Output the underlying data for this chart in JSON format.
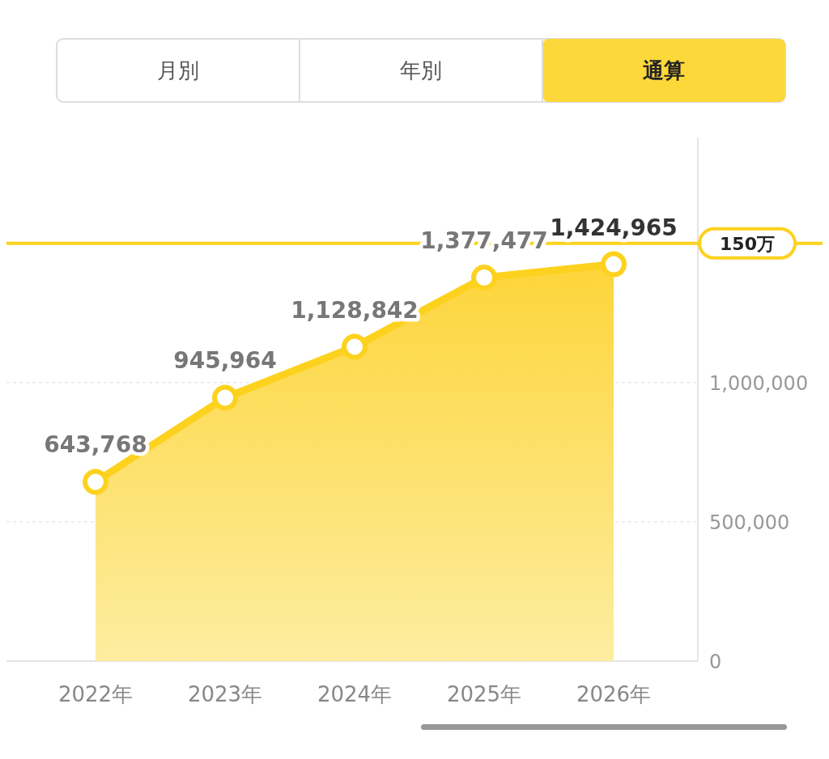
{
  "chart_data": {
    "type": "area",
    "categories": [
      "2022年",
      "2023年",
      "2024年",
      "2025年",
      "2026年"
    ],
    "values": [
      643768,
      945964,
      1128842,
      1377477,
      1424965
    ],
    "color": "#fdd21f",
    "ylim": [
      0,
      1880000
    ],
    "yticks": [
      0,
      {
        "value": 500000,
        "label": "500,000"
      },
      {
        "value": 1000000,
        "label": "1,000,000"
      }
    ],
    "grid": "y",
    "marker": "circle",
    "value_labels": [
      "643,768",
      "945,964",
      "1,128,842",
      "1,377,477",
      "1,424,965"
    ],
    "ref_lines": [
      {
        "axis": "y",
        "value": 1500000,
        "label": "150万",
        "color": "#fdd21f"
      }
    ],
    "annotations": [
      "月別",
      "年別",
      "通算"
    ]
  }
}
